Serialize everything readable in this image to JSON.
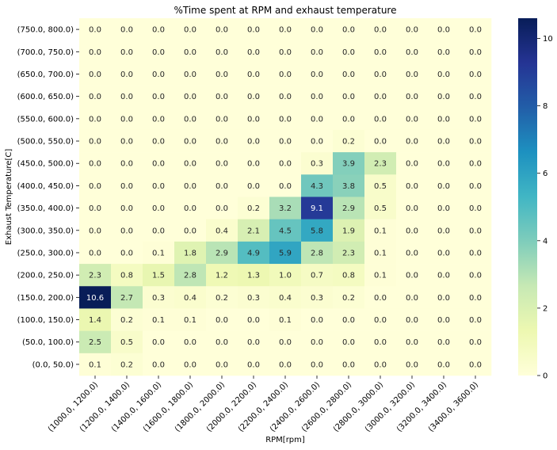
{
  "chart_data": {
    "type": "heatmap",
    "title": "%Time spent at RPM and exhaust temperature",
    "xlabel": "RPM[rpm]",
    "ylabel": "Exhaust Temperature[C]",
    "x_categories": [
      "(1000.0, 1200.0)",
      "(1200.0, 1400.0)",
      "(1400.0, 1600.0)",
      "(1600.0, 1800.0)",
      "(1800.0, 2000.0)",
      "(2000.0, 2200.0)",
      "(2200.0, 2400.0)",
      "(2400.0, 2600.0)",
      "(2600.0, 2800.0)",
      "(2800.0, 3000.0)",
      "(3000.0, 3200.0)",
      "(3200.0, 3400.0)",
      "(3400.0, 3600.0)"
    ],
    "y_categories": [
      "(750.0, 800.0)",
      "(700.0, 750.0)",
      "(650.0, 700.0)",
      "(600.0, 650.0)",
      "(550.0, 600.0)",
      "(500.0, 550.0)",
      "(450.0, 500.0)",
      "(400.0, 450.0)",
      "(350.0, 400.0)",
      "(300.0, 350.0)",
      "(250.0, 300.0)",
      "(200.0, 250.0)",
      "(150.0, 200.0)",
      "(100.0, 150.0)",
      "(50.0, 100.0)",
      "(0.0, 50.0)"
    ],
    "values": [
      [
        0.0,
        0.0,
        0.0,
        0.0,
        0.0,
        0.0,
        0.0,
        0.0,
        0.0,
        0.0,
        0.0,
        0.0,
        0.0
      ],
      [
        0.0,
        0.0,
        0.0,
        0.0,
        0.0,
        0.0,
        0.0,
        0.0,
        0.0,
        0.0,
        0.0,
        0.0,
        0.0
      ],
      [
        0.0,
        0.0,
        0.0,
        0.0,
        0.0,
        0.0,
        0.0,
        0.0,
        0.0,
        0.0,
        0.0,
        0.0,
        0.0
      ],
      [
        0.0,
        0.0,
        0.0,
        0.0,
        0.0,
        0.0,
        0.0,
        0.0,
        0.0,
        0.0,
        0.0,
        0.0,
        0.0
      ],
      [
        0.0,
        0.0,
        0.0,
        0.0,
        0.0,
        0.0,
        0.0,
        0.0,
        0.0,
        0.0,
        0.0,
        0.0,
        0.0
      ],
      [
        0.0,
        0.0,
        0.0,
        0.0,
        0.0,
        0.0,
        0.0,
        0.0,
        0.2,
        0.0,
        0.0,
        0.0,
        0.0
      ],
      [
        0.0,
        0.0,
        0.0,
        0.0,
        0.0,
        0.0,
        0.0,
        0.3,
        3.9,
        2.3,
        0.0,
        0.0,
        0.0
      ],
      [
        0.0,
        0.0,
        0.0,
        0.0,
        0.0,
        0.0,
        0.0,
        4.3,
        3.8,
        0.5,
        0.0,
        0.0,
        0.0
      ],
      [
        0.0,
        0.0,
        0.0,
        0.0,
        0.0,
        0.2,
        3.2,
        9.1,
        2.9,
        0.5,
        0.0,
        0.0,
        0.0
      ],
      [
        0.0,
        0.0,
        0.0,
        0.0,
        0.4,
        2.1,
        4.5,
        5.8,
        1.9,
        0.1,
        0.0,
        0.0,
        0.0
      ],
      [
        0.0,
        0.0,
        0.1,
        1.8,
        2.9,
        4.9,
        5.9,
        2.8,
        2.3,
        0.1,
        0.0,
        0.0,
        0.0
      ],
      [
        2.3,
        0.8,
        1.5,
        2.8,
        1.2,
        1.3,
        1.0,
        0.7,
        0.8,
        0.1,
        0.0,
        0.0,
        0.0
      ],
      [
        10.6,
        2.7,
        0.3,
        0.4,
        0.2,
        0.3,
        0.4,
        0.3,
        0.2,
        0.0,
        0.0,
        0.0,
        0.0
      ],
      [
        1.4,
        0.2,
        0.1,
        0.1,
        0.0,
        0.0,
        0.1,
        0.0,
        0.0,
        0.0,
        0.0,
        0.0,
        0.0
      ],
      [
        2.5,
        0.5,
        0.0,
        0.0,
        0.0,
        0.0,
        0.0,
        0.0,
        0.0,
        0.0,
        0.0,
        0.0,
        0.0
      ],
      [
        0.1,
        0.2,
        0.0,
        0.0,
        0.0,
        0.0,
        0.0,
        0.0,
        0.0,
        0.0,
        0.0,
        0.0,
        0.0
      ]
    ],
    "value_format": "one decimal",
    "colorbar": {
      "range": [
        0,
        10.6
      ],
      "ticks": [
        "0",
        "2",
        "4",
        "6",
        "8",
        "10"
      ],
      "tick_values": [
        0,
        2,
        4,
        6,
        8,
        10
      ],
      "colormap": "YlGnBu",
      "colormap_stops": [
        "#ffffd9",
        "#edf8b1",
        "#c7e9b4",
        "#7fcdbb",
        "#41b6c4",
        "#1d91c0",
        "#225ea8",
        "#253494",
        "#081d58"
      ]
    },
    "grid": false,
    "legend": "colorbar-right"
  }
}
